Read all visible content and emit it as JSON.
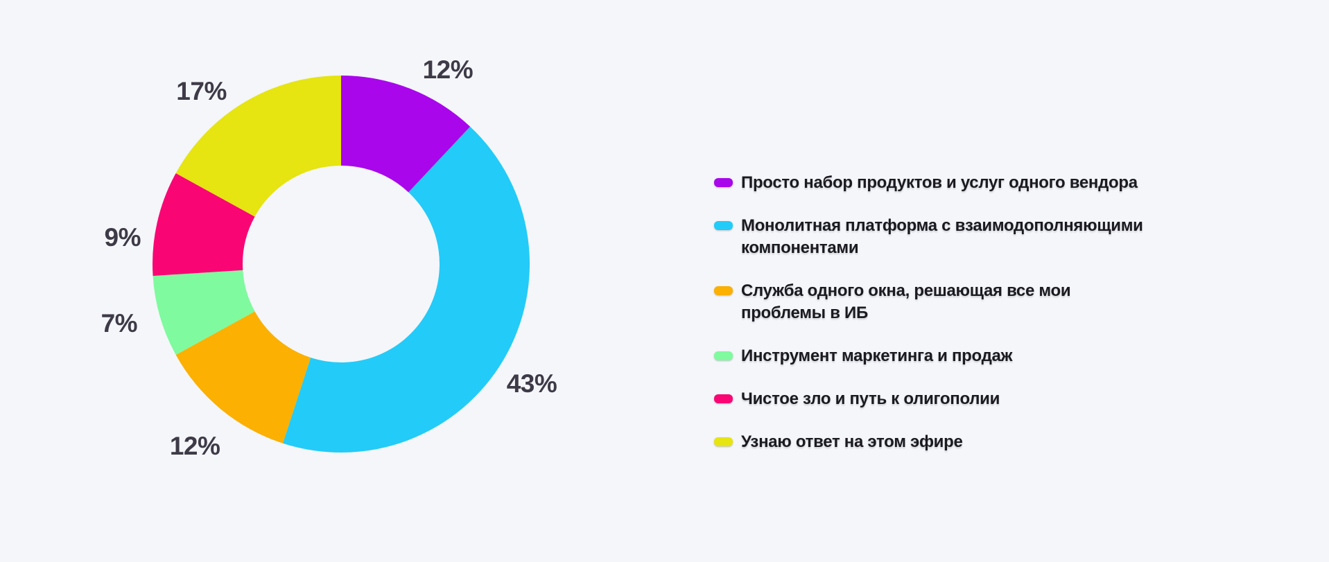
{
  "colors": {
    "background": "#F4F6FA",
    "value_label_text": "#3E3A47",
    "legend_text": "#1A1A20"
  },
  "chart_data": {
    "type": "pie",
    "subtype": "donut",
    "title": "",
    "direction": "clockwise",
    "start_angle_deg": 0,
    "inner_radius_ratio": 0.52,
    "legend_position": "right",
    "total": 100,
    "series": [
      {
        "label": "Просто набор продуктов и услуг одного вендора",
        "lines": [
          "Просто набор продуктов и услуг одного вендора"
        ],
        "value": 12,
        "display": "12%",
        "color": "#A906EC"
      },
      {
        "label": "Монолитная платформа с взаимодополняющими компонентами",
        "lines": [
          "Монолитная платформа с взаимодополняющими",
          "компонентами"
        ],
        "value": 43,
        "display": "43%",
        "color": "#23CBF8"
      },
      {
        "label": "Служба одного окна, решающая все мои проблемы в ИБ",
        "lines": [
          "Служба одного окна, решающая все мои",
          "проблемы в ИБ"
        ],
        "value": 12,
        "display": "12%",
        "color": "#FCB002"
      },
      {
        "label": "Инструмент маркетинга и продаж",
        "lines": [
          "Инструмент маркетинга и продаж"
        ],
        "value": 7,
        "display": "7%",
        "color": "#7FFA9E"
      },
      {
        "label": "Чистое зло и путь к олигополии",
        "lines": [
          "Чистое зло и путь к олигополии"
        ],
        "value": 9,
        "display": "9%",
        "color": "#FA0674"
      },
      {
        "label": "Узнаю ответ на этом эфире",
        "lines": [
          "Узнаю ответ на этом эфире"
        ],
        "value": 17,
        "display": "17%",
        "color": "#E6E411"
      }
    ]
  }
}
